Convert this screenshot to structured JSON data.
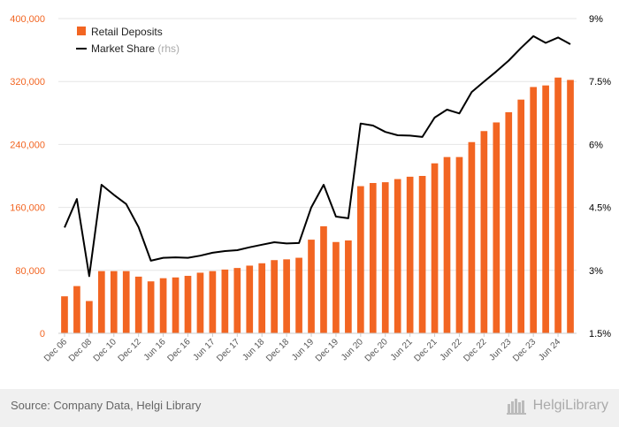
{
  "chart_data": {
    "type": "bar",
    "categories": [
      "Dec 06",
      "",
      "Dec 08",
      "",
      "Dec 10",
      "",
      "Dec 12",
      "",
      "Jun 16",
      "",
      "Dec 16",
      "",
      "Jun 17",
      "",
      "Dec 17",
      "",
      "Jun 18",
      "",
      "Dec 18",
      "",
      "Jun 19",
      "",
      "Dec 19",
      "",
      "Jun 20",
      "",
      "Dec 20",
      "",
      "Jun 21",
      "",
      "Dec 21",
      "",
      "Jun 22",
      "",
      "Dec 22",
      "",
      "Jun 23",
      "",
      "Dec 23",
      "",
      "Jun 24",
      ""
    ],
    "series": [
      {
        "name": "Retail Deposits",
        "axis": "left",
        "type": "bar",
        "color": "#f26522",
        "values": [
          47000,
          60000,
          41000,
          79000,
          79000,
          79000,
          72000,
          66000,
          70000,
          71000,
          73000,
          77000,
          79000,
          81000,
          83000,
          86000,
          89000,
          93000,
          94000,
          96000,
          119000,
          136000,
          116000,
          118000,
          187000,
          191000,
          192000,
          196000,
          199000,
          200000,
          216000,
          224000,
          224000,
          243000,
          257000,
          268000,
          281000,
          297000,
          313000,
          315000,
          325000,
          322000
        ]
      },
      {
        "name": "Market Share",
        "name_suffix": "(rhs)",
        "axis": "right",
        "type": "line",
        "color": "#000000",
        "values": [
          4.02,
          4.7,
          2.86,
          5.04,
          4.8,
          4.58,
          4.03,
          3.23,
          3.3,
          3.31,
          3.3,
          3.35,
          3.42,
          3.46,
          3.48,
          3.55,
          3.61,
          3.67,
          3.64,
          3.65,
          4.5,
          5.04,
          4.28,
          4.24,
          6.5,
          6.45,
          6.3,
          6.22,
          6.21,
          6.18,
          6.64,
          6.83,
          6.74,
          7.25,
          7.5,
          7.74,
          8.0,
          8.3,
          8.58,
          8.42,
          8.55,
          8.39
        ]
      }
    ],
    "y_left": {
      "ylim": [
        0,
        400000
      ],
      "ticks": [
        "0",
        "80,000",
        "160,000",
        "240,000",
        "320,000",
        "400,000"
      ],
      "tick_values": [
        0,
        80000,
        160000,
        240000,
        320000,
        400000
      ],
      "color": "#f26522"
    },
    "y_right": {
      "ylim": [
        1.5,
        9
      ],
      "ticks": [
        "1.5%",
        "3%",
        "4.5%",
        "6%",
        "7.5%",
        "9%"
      ],
      "tick_values": [
        1.5,
        3,
        4.5,
        6,
        7.5,
        9
      ],
      "color": "#000000"
    },
    "grid": true,
    "legend": "top-left",
    "title": "",
    "xlabel": "",
    "ylabel": ""
  },
  "footer": {
    "source": "Source: Company Data, Helgi Library",
    "logo": "HelgiLibrary"
  }
}
